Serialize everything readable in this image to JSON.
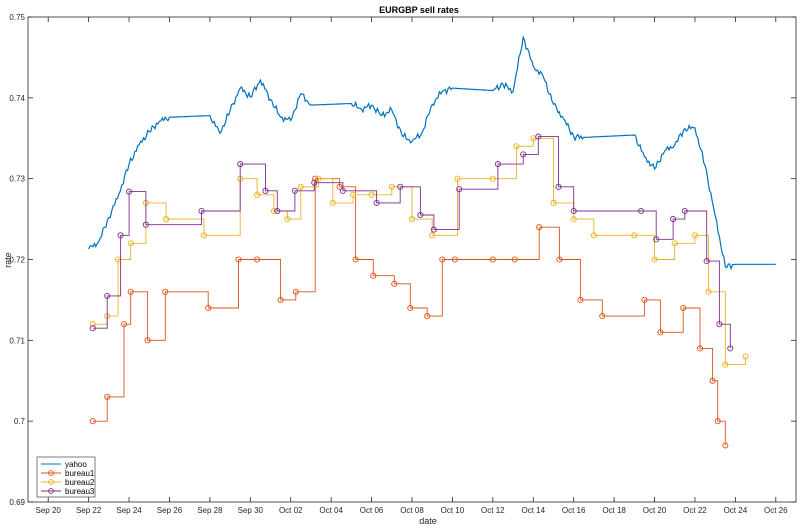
{
  "chart_data": {
    "type": "line",
    "title": "EURGBP sell rates",
    "xlabel": "date",
    "ylabel": "rate",
    "xlim": [
      "2015-09-19",
      "2015-10-27"
    ],
    "ylim": [
      0.69,
      0.75
    ],
    "x_tick_labels": [
      "Sep 20",
      "Sep 22",
      "Sep 24",
      "Sep 26",
      "Sep 28",
      "Sep 30",
      "Oct 02",
      "Oct 04",
      "Oct 06",
      "Oct 08",
      "Oct 10",
      "Oct 12",
      "Oct 14",
      "Oct 16",
      "Oct 18",
      "Oct 20",
      "Oct 22",
      "Oct 24",
      "Oct 26"
    ],
    "x_tick_dates": [
      "2015-09-20",
      "2015-09-22",
      "2015-09-24",
      "2015-09-26",
      "2015-09-28",
      "2015-09-30",
      "2015-10-02",
      "2015-10-04",
      "2015-10-06",
      "2015-10-08",
      "2015-10-10",
      "2015-10-12",
      "2015-10-14",
      "2015-10-16",
      "2015-10-18",
      "2015-10-20",
      "2015-10-22",
      "2015-10-24",
      "2015-10-26"
    ],
    "y_ticks": [
      0.69,
      0.7,
      0.71,
      0.72,
      0.73,
      0.74,
      0.75
    ],
    "y_tick_labels": [
      "0.69",
      "0.7",
      "0.71",
      "0.72",
      "0.73",
      "0.74",
      "0.75"
    ],
    "grid": false,
    "legend_position": "bottom-left",
    "series": [
      {
        "name": "yahoo",
        "color": "#0072BD",
        "marker": "none",
        "points": [
          [
            "2015-09-22 00:00",
            0.7213
          ],
          [
            "2015-09-22 12:00",
            0.7222
          ],
          [
            "2015-09-23 00:00",
            0.7252
          ],
          [
            "2015-09-23 12:00",
            0.7281
          ],
          [
            "2015-09-24 00:00",
            0.7318
          ],
          [
            "2015-09-24 12:00",
            0.7342
          ],
          [
            "2015-09-25 00:00",
            0.7358
          ],
          [
            "2015-09-25 12:00",
            0.7371
          ],
          [
            "2015-09-26 00:00",
            0.7376
          ],
          [
            "2015-09-28 00:00",
            0.7378
          ],
          [
            "2015-09-28 12:00",
            0.7356
          ],
          [
            "2015-09-29 00:00",
            0.7384
          ],
          [
            "2015-09-29 12:00",
            0.7412
          ],
          [
            "2015-09-30 00:00",
            0.7401
          ],
          [
            "2015-09-30 12:00",
            0.7422
          ],
          [
            "2015-10-01 00:00",
            0.7398
          ],
          [
            "2015-10-01 12:00",
            0.7376
          ],
          [
            "2015-10-02 00:00",
            0.7372
          ],
          [
            "2015-10-02 12:00",
            0.7405
          ],
          [
            "2015-10-03 00:00",
            0.7391
          ],
          [
            "2015-10-05 00:00",
            0.7393
          ],
          [
            "2015-10-05 12:00",
            0.7386
          ],
          [
            "2015-10-06 00:00",
            0.7391
          ],
          [
            "2015-10-06 12:00",
            0.7378
          ],
          [
            "2015-10-07 00:00",
            0.7385
          ],
          [
            "2015-10-07 12:00",
            0.7354
          ],
          [
            "2015-10-08 00:00",
            0.7346
          ],
          [
            "2015-10-08 12:00",
            0.7357
          ],
          [
            "2015-10-09 00:00",
            0.7392
          ],
          [
            "2015-10-09 12:00",
            0.7408
          ],
          [
            "2015-10-10 00:00",
            0.7412
          ],
          [
            "2015-10-12 00:00",
            0.7409
          ],
          [
            "2015-10-12 12:00",
            0.7417
          ],
          [
            "2015-10-13 00:00",
            0.7408
          ],
          [
            "2015-10-13 12:00",
            0.7475
          ],
          [
            "2015-10-14 00:00",
            0.7439
          ],
          [
            "2015-10-14 12:00",
            0.7426
          ],
          [
            "2015-10-15 00:00",
            0.7392
          ],
          [
            "2015-10-15 12:00",
            0.7374
          ],
          [
            "2015-10-16 00:00",
            0.7352
          ],
          [
            "2015-10-16 12:00",
            0.7351
          ],
          [
            "2015-10-19 00:00",
            0.7354
          ],
          [
            "2015-10-19 12:00",
            0.7327
          ],
          [
            "2015-10-20 00:00",
            0.7312
          ],
          [
            "2015-10-20 12:00",
            0.7334
          ],
          [
            "2015-10-21 00:00",
            0.7342
          ],
          [
            "2015-10-21 12:00",
            0.7362
          ],
          [
            "2015-10-22 00:00",
            0.7363
          ],
          [
            "2015-10-22 12:00",
            0.7316
          ],
          [
            "2015-10-23 00:00",
            0.7254
          ],
          [
            "2015-10-23 12:00",
            0.7191
          ],
          [
            "2015-10-24 00:00",
            0.7194
          ],
          [
            "2015-10-26 00:00",
            0.7194
          ]
        ]
      },
      {
        "name": "bureau1",
        "color": "#D95319",
        "marker": "circle",
        "points": [
          [
            "2015-09-22 05:00",
            0.7
          ],
          [
            "2015-09-22 22:00",
            0.703
          ],
          [
            "2015-09-23 18:00",
            0.712
          ],
          [
            "2015-09-24 02:00",
            0.716
          ],
          [
            "2015-09-24 22:00",
            0.71
          ],
          [
            "2015-09-25 19:00",
            0.716
          ],
          [
            "2015-09-27 22:00",
            0.714
          ],
          [
            "2015-09-29 10:00",
            0.72
          ],
          [
            "2015-09-30 08:00",
            0.72
          ],
          [
            "2015-10-01 12:00",
            0.715
          ],
          [
            "2015-10-02 06:00",
            0.716
          ],
          [
            "2015-10-03 05:00",
            0.73
          ],
          [
            "2015-10-04 10:00",
            0.729
          ],
          [
            "2015-10-05 05:00",
            0.72
          ],
          [
            "2015-10-06 02:00",
            0.718
          ],
          [
            "2015-10-07 03:00",
            0.717
          ],
          [
            "2015-10-07 22:00",
            0.714
          ],
          [
            "2015-10-08 18:00",
            0.713
          ],
          [
            "2015-10-09 12:00",
            0.72
          ],
          [
            "2015-10-10 03:00",
            0.72
          ],
          [
            "2015-10-12 00:00",
            0.72
          ],
          [
            "2015-10-13 02:00",
            0.72
          ],
          [
            "2015-10-14 07:00",
            0.724
          ],
          [
            "2015-10-15 07:00",
            0.72
          ],
          [
            "2015-10-16 08:00",
            0.715
          ],
          [
            "2015-10-17 10:00",
            0.713
          ],
          [
            "2015-10-19 12:00",
            0.715
          ],
          [
            "2015-10-20 07:00",
            0.711
          ],
          [
            "2015-10-21 10:00",
            0.714
          ],
          [
            "2015-10-22 06:00",
            0.709
          ],
          [
            "2015-10-22 21:00",
            0.705
          ],
          [
            "2015-10-23 03:00",
            0.7
          ],
          [
            "2015-10-23 12:00",
            0.697
          ]
        ]
      },
      {
        "name": "bureau2",
        "color": "#EDB120",
        "marker": "circle",
        "points": [
          [
            "2015-09-22 05:00",
            0.712
          ],
          [
            "2015-09-22 22:00",
            0.713
          ],
          [
            "2015-09-23 11:00",
            0.72
          ],
          [
            "2015-09-24 02:00",
            0.722
          ],
          [
            "2015-09-24 20:00",
            0.727
          ],
          [
            "2015-09-25 20:00",
            0.725
          ],
          [
            "2015-09-27 17:00",
            0.723
          ],
          [
            "2015-09-29 12:00",
            0.73
          ],
          [
            "2015-09-30 08:00",
            0.728
          ],
          [
            "2015-10-01 04:00",
            0.726
          ],
          [
            "2015-10-01 20:00",
            0.725
          ],
          [
            "2015-10-02 12:00",
            0.729
          ],
          [
            "2015-10-03 09:00",
            0.73
          ],
          [
            "2015-10-04 02:00",
            0.727
          ],
          [
            "2015-10-05 02:00",
            0.728
          ],
          [
            "2015-10-06 00:00",
            0.728
          ],
          [
            "2015-10-07 00:00",
            0.729
          ],
          [
            "2015-10-08 00:00",
            0.725
          ],
          [
            "2015-10-09 00:00",
            0.723
          ],
          [
            "2015-10-10 06:00",
            0.73
          ],
          [
            "2015-10-12 00:00",
            0.73
          ],
          [
            "2015-10-13 04:00",
            0.734
          ],
          [
            "2015-10-14 00:00",
            0.735
          ],
          [
            "2015-10-15 00:00",
            0.727
          ],
          [
            "2015-10-16 00:00",
            0.725
          ],
          [
            "2015-10-17 00:00",
            0.723
          ],
          [
            "2015-10-19 00:00",
            0.723
          ],
          [
            "2015-10-20 00:00",
            0.72
          ],
          [
            "2015-10-21 00:00",
            0.722
          ],
          [
            "2015-10-22 00:00",
            0.723
          ],
          [
            "2015-10-22 16:00",
            0.716
          ],
          [
            "2015-10-23 12:00",
            0.707
          ],
          [
            "2015-10-24 12:00",
            0.708
          ]
        ]
      },
      {
        "name": "bureau3",
        "color": "#7E2F8E",
        "marker": "circle",
        "points": [
          [
            "2015-09-22 05:00",
            0.7115
          ],
          [
            "2015-09-22 22:00",
            0.7155
          ],
          [
            "2015-09-23 14:00",
            0.723
          ],
          [
            "2015-09-24 00:00",
            0.7284
          ],
          [
            "2015-09-24 20:00",
            0.7243
          ],
          [
            "2015-09-27 14:00",
            0.726
          ],
          [
            "2015-09-29 12:00",
            0.7318
          ],
          [
            "2015-09-30 18:00",
            0.7285
          ],
          [
            "2015-10-01 08:00",
            0.726
          ],
          [
            "2015-10-02 05:00",
            0.7285
          ],
          [
            "2015-10-03 04:00",
            0.7295
          ],
          [
            "2015-10-04 14:00",
            0.7285
          ],
          [
            "2015-10-06 06:00",
            0.727
          ],
          [
            "2015-10-07 10:00",
            0.729
          ],
          [
            "2015-10-08 10:00",
            0.7255
          ],
          [
            "2015-10-09 02:00",
            0.7237
          ],
          [
            "2015-10-10 08:00",
            0.7287
          ],
          [
            "2015-10-12 06:00",
            0.7318
          ],
          [
            "2015-10-13 12:00",
            0.733
          ],
          [
            "2015-10-14 06:00",
            0.7352
          ],
          [
            "2015-10-15 06:00",
            0.729
          ],
          [
            "2015-10-16 00:00",
            0.726
          ],
          [
            "2015-10-19 08:00",
            0.726
          ],
          [
            "2015-10-20 02:00",
            0.7225
          ],
          [
            "2015-10-20 22:00",
            0.725
          ],
          [
            "2015-10-21 12:00",
            0.726
          ],
          [
            "2015-10-22 14:00",
            0.7198
          ],
          [
            "2015-10-23 05:00",
            0.712
          ],
          [
            "2015-10-23 18:00",
            0.709
          ]
        ]
      }
    ]
  }
}
